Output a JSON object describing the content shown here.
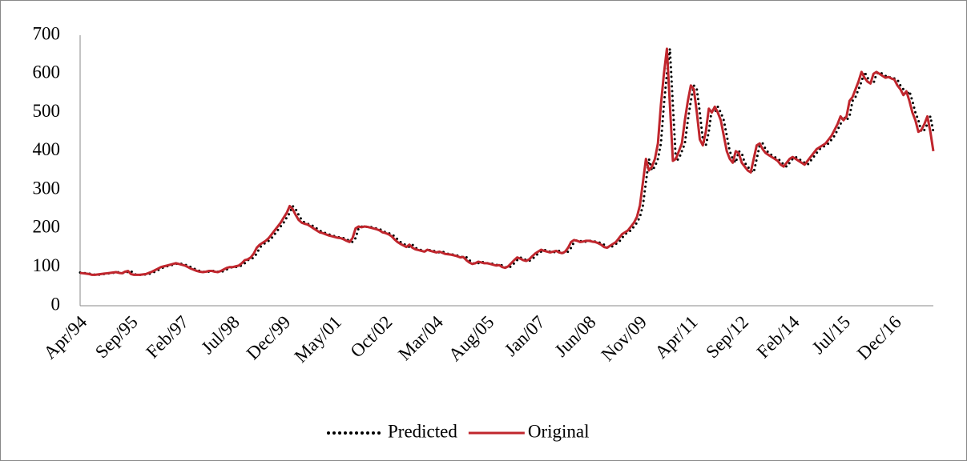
{
  "chart_data": {
    "type": "line",
    "categories": [
      "Apr/94",
      null,
      null,
      null,
      null,
      null,
      null,
      null,
      null,
      null,
      null,
      null,
      null,
      null,
      null,
      null,
      null,
      "Sep/95",
      null,
      null,
      null,
      null,
      null,
      null,
      null,
      null,
      null,
      null,
      null,
      null,
      null,
      null,
      null,
      null,
      "Feb/97",
      null,
      null,
      null,
      null,
      null,
      null,
      null,
      null,
      null,
      null,
      null,
      null,
      null,
      null,
      null,
      null,
      "Jul/98",
      null,
      null,
      null,
      null,
      null,
      null,
      null,
      null,
      null,
      null,
      null,
      null,
      null,
      null,
      null,
      null,
      "Dec/99",
      null,
      null,
      null,
      null,
      null,
      null,
      null,
      null,
      null,
      null,
      null,
      null,
      null,
      null,
      null,
      null,
      "May/01",
      null,
      null,
      null,
      null,
      null,
      null,
      null,
      null,
      null,
      null,
      null,
      null,
      null,
      null,
      null,
      null,
      "Oct/02",
      null,
      null,
      null,
      null,
      null,
      null,
      null,
      null,
      null,
      null,
      null,
      null,
      null,
      null,
      null,
      null,
      "Mar/04",
      null,
      null,
      null,
      null,
      null,
      null,
      null,
      null,
      null,
      null,
      null,
      null,
      null,
      null,
      null,
      null,
      "Aug/05",
      null,
      null,
      null,
      null,
      null,
      null,
      null,
      null,
      null,
      null,
      null,
      null,
      null,
      null,
      null,
      null,
      "Jan/07",
      null,
      null,
      null,
      null,
      null,
      null,
      null,
      null,
      null,
      null,
      null,
      null,
      null,
      null,
      null,
      null,
      "Jun/08",
      null,
      null,
      null,
      null,
      null,
      null,
      null,
      null,
      null,
      null,
      null,
      null,
      null,
      null,
      null,
      null,
      "Nov/09",
      null,
      null,
      null,
      null,
      null,
      null,
      null,
      null,
      null,
      null,
      null,
      null,
      null,
      null,
      null,
      null,
      "Apr/11",
      null,
      null,
      null,
      null,
      null,
      null,
      null,
      null,
      null,
      null,
      null,
      null,
      null,
      null,
      null,
      null,
      "Sep/12",
      null,
      null,
      null,
      null,
      null,
      null,
      null,
      null,
      null,
      null,
      null,
      null,
      null,
      null,
      null,
      null,
      "Feb/14",
      null,
      null,
      null,
      null,
      null,
      null,
      null,
      null,
      null,
      null,
      null,
      null,
      null,
      null,
      null,
      null,
      "Jul/15",
      null,
      null,
      null,
      null,
      null,
      null,
      null,
      null,
      null,
      null,
      null,
      null,
      null,
      null,
      null,
      null,
      "Dec/16",
      null,
      null,
      null,
      null,
      null,
      null,
      null,
      null,
      null,
      null,
      null,
      null,
      null
    ],
    "series": [
      {
        "name": "Predicted",
        "color": "#000000",
        "style": "dotted",
        "values": [
          86,
          85,
          84,
          83,
          82,
          80,
          80,
          81,
          82,
          83,
          84,
          85,
          86,
          87,
          85,
          84,
          88,
          90,
          82,
          80,
          80,
          80,
          81,
          82,
          85,
          88,
          92,
          96,
          100,
          102,
          104,
          106,
          108,
          110,
          108,
          106,
          104,
          100,
          96,
          93,
          90,
          88,
          87,
          88,
          90,
          90,
          88,
          87,
          90,
          94,
          98,
          100,
          100,
          102,
          104,
          110,
          118,
          120,
          125,
          135,
          150,
          158,
          163,
          168,
          175,
          185,
          195,
          205,
          215,
          228,
          240,
          258,
          250,
          235,
          222,
          215,
          212,
          210,
          205,
          200,
          195,
          190,
          188,
          185,
          182,
          180,
          178,
          176,
          175,
          172,
          168,
          165,
          175,
          200,
          205,
          203,
          205,
          204,
          202,
          200,
          198,
          195,
          190,
          188,
          185,
          180,
          172,
          165,
          160,
          156,
          152,
          158,
          150,
          146,
          144,
          142,
          140,
          145,
          142,
          140,
          138,
          140,
          137,
          134,
          133,
          132,
          130,
          128,
          125,
          126,
          118,
          112,
          108,
          110,
          114,
          112,
          110,
          110,
          108,
          106,
          104,
          105,
          100,
          98,
          102,
          110,
          118,
          125,
          122,
          118,
          116,
          120,
          128,
          135,
          140,
          145,
          142,
          140,
          138,
          140,
          142,
          138,
          136,
          140,
          150,
          165,
          170,
          168,
          165,
          166,
          168,
          168,
          166,
          165,
          162,
          158,
          152,
          150,
          155,
          160,
          165,
          175,
          185,
          190,
          195,
          205,
          215,
          230,
          260,
          320,
          380,
          350,
          360,
          380,
          420,
          520,
          600,
          665,
          520,
          375,
          380,
          400,
          420,
          480,
          530,
          570,
          560,
          500,
          430,
          415,
          450,
          510,
          500,
          515,
          500,
          480,
          440,
          400,
          380,
          370,
          400,
          395,
          370,
          360,
          350,
          345,
          380,
          415,
          420,
          405,
          395,
          390,
          385,
          380,
          375,
          365,
          360,
          370,
          380,
          385,
          380,
          375,
          370,
          365,
          375,
          385,
          395,
          405,
          410,
          415,
          420,
          430,
          440,
          455,
          470,
          490,
          480,
          490,
          530,
          540,
          560,
          580,
          605,
          590,
          580,
          575,
          600,
          605,
          600,
          595,
          590,
          592,
          588,
          585,
          570,
          560,
          545,
          555,
          530,
          500,
          480,
          450,
          455,
          470,
          490,
          450
        ]
      },
      {
        "name": "Original",
        "color": "#c0262d",
        "style": "solid",
        "values": [
          85,
          84,
          83,
          82,
          80,
          80,
          81,
          82,
          83,
          84,
          85,
          86,
          87,
          85,
          84,
          88,
          90,
          82,
          80,
          80,
          80,
          81,
          82,
          85,
          88,
          92,
          96,
          100,
          102,
          104,
          106,
          108,
          110,
          108,
          106,
          104,
          100,
          96,
          93,
          90,
          88,
          87,
          88,
          90,
          90,
          88,
          87,
          90,
          94,
          98,
          100,
          100,
          102,
          104,
          110,
          118,
          120,
          125,
          135,
          150,
          158,
          163,
          168,
          175,
          185,
          195,
          205,
          215,
          228,
          240,
          258,
          250,
          235,
          222,
          215,
          212,
          210,
          205,
          200,
          195,
          190,
          188,
          185,
          182,
          180,
          178,
          176,
          175,
          172,
          168,
          165,
          175,
          200,
          205,
          203,
          205,
          204,
          202,
          200,
          198,
          195,
          190,
          188,
          185,
          180,
          172,
          165,
          160,
          156,
          152,
          158,
          150,
          146,
          144,
          142,
          140,
          145,
          142,
          140,
          138,
          140,
          137,
          134,
          133,
          132,
          130,
          128,
          125,
          126,
          118,
          112,
          108,
          110,
          114,
          112,
          110,
          110,
          108,
          106,
          104,
          105,
          100,
          98,
          102,
          110,
          118,
          125,
          122,
          118,
          116,
          120,
          128,
          135,
          140,
          145,
          142,
          140,
          138,
          140,
          142,
          138,
          136,
          140,
          150,
          165,
          170,
          168,
          165,
          166,
          168,
          168,
          166,
          165,
          162,
          158,
          152,
          150,
          155,
          160,
          165,
          175,
          185,
          190,
          195,
          205,
          215,
          230,
          260,
          320,
          380,
          350,
          360,
          380,
          420,
          520,
          600,
          665,
          520,
          375,
          380,
          400,
          420,
          480,
          530,
          570,
          560,
          500,
          430,
          415,
          450,
          510,
          500,
          515,
          500,
          480,
          440,
          400,
          380,
          370,
          400,
          395,
          370,
          360,
          350,
          345,
          380,
          415,
          420,
          405,
          395,
          390,
          385,
          380,
          375,
          365,
          360,
          370,
          380,
          385,
          380,
          375,
          370,
          365,
          375,
          385,
          395,
          405,
          410,
          415,
          420,
          430,
          440,
          455,
          470,
          490,
          480,
          490,
          530,
          540,
          560,
          580,
          605,
          590,
          580,
          575,
          600,
          605,
          600,
          595,
          590,
          592,
          588,
          585,
          570,
          560,
          545,
          555,
          530,
          500,
          480,
          450,
          455,
          470,
          490,
          450,
          400
        ]
      }
    ],
    "ylim": [
      0,
      700
    ],
    "yticks": [
      0,
      100,
      200,
      300,
      400,
      500,
      600,
      700
    ],
    "grid": false,
    "legend": "bottom"
  }
}
